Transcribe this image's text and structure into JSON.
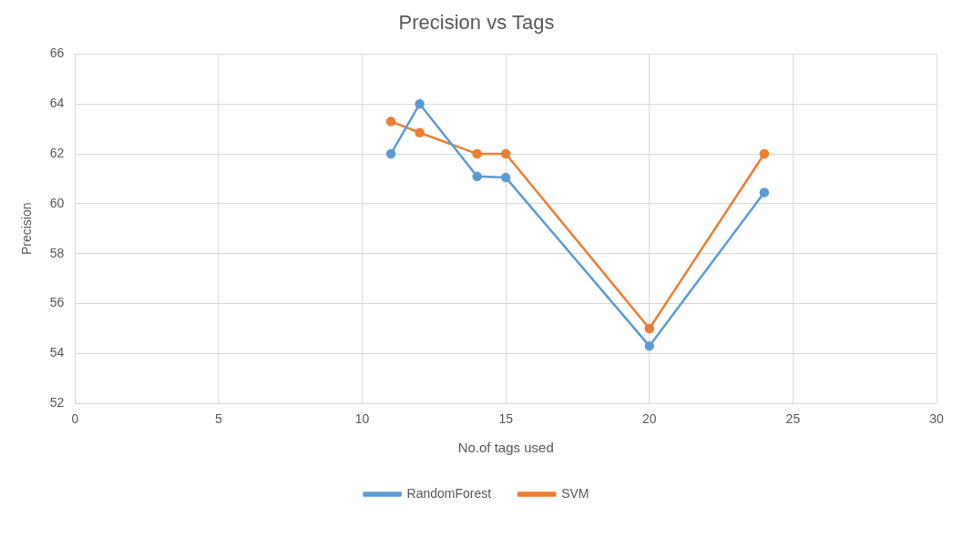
{
  "chart_data": {
    "type": "line",
    "title": "Precision vs Tags",
    "xlabel": "No.of tags used",
    "ylabel": "Precision",
    "x": [
      11,
      12,
      14,
      15,
      20,
      24
    ],
    "series": [
      {
        "name": "RandomForest",
        "color": "#5b9bd5",
        "values": [
          62,
          64,
          61.1,
          61.05,
          54.3,
          60.45
        ]
      },
      {
        "name": "SVM",
        "color": "#ed7d31",
        "values": [
          63.3,
          62.85,
          62,
          62,
          55,
          62
        ]
      }
    ],
    "xlim": [
      0,
      30
    ],
    "xticks": [
      0,
      5,
      10,
      15,
      20,
      25,
      30
    ],
    "ylim": [
      52,
      66
    ],
    "yticks": [
      52,
      54,
      56,
      58,
      60,
      62,
      64,
      66
    ],
    "grid": true,
    "legend": "bottom",
    "marker": "circle",
    "line_style": "solid"
  }
}
